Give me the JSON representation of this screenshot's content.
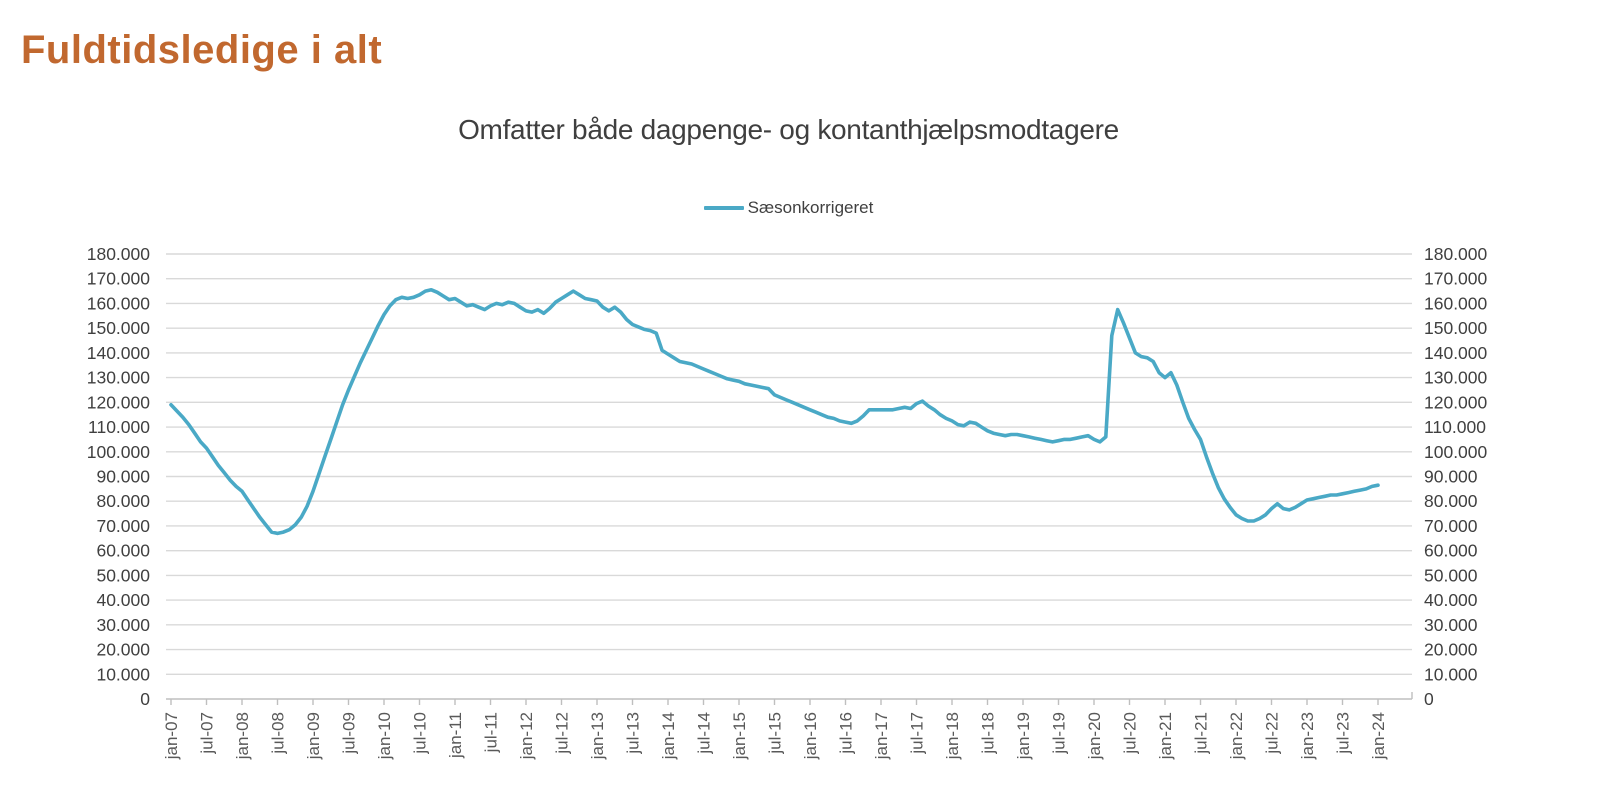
{
  "page": {
    "title": "Fuldtidsledige i alt"
  },
  "colors": {
    "title": "#C1682F",
    "series_line": "#4AA9C6",
    "grid": "#D9D9D9",
    "axis": "#BFBFBF",
    "y_tick_text": "#404040",
    "x_tick_text": "#595959"
  },
  "chart_data": {
    "type": "line",
    "title": "Omfatter både dagpenge- og kontanthjælpsmodtagere",
    "legend_position": "top-center",
    "grid": "horizontal",
    "x_start": "jan-07",
    "x_end": "jan-24",
    "x_frequency": "monthly",
    "x_tick_every_months": 6,
    "x_tick_labels": [
      "jan-07",
      "jul-07",
      "jan-08",
      "jul-08",
      "jan-09",
      "jul-09",
      "jan-10",
      "jul-10",
      "jan-11",
      "jul-11",
      "jan-12",
      "jul-12",
      "jan-13",
      "jul-13",
      "jan-14",
      "jul-14",
      "jan-15",
      "jul-15",
      "jan-16",
      "jul-16",
      "jan-17",
      "jul-17",
      "jan-18",
      "jul-18",
      "jan-19",
      "jul-19",
      "jan-20",
      "jul-20",
      "jan-21",
      "jul-21",
      "jan-22",
      "jul-22",
      "jan-23",
      "jul-23",
      "jan-24"
    ],
    "ylim": [
      0,
      180000
    ],
    "y_tick_step": 10000,
    "y_tick_labels": [
      "0",
      "10.000",
      "20.000",
      "30.000",
      "40.000",
      "50.000",
      "60.000",
      "70.000",
      "80.000",
      "90.000",
      "100.000",
      "110.000",
      "120.000",
      "130.000",
      "140.000",
      "150.000",
      "160.000",
      "170.000",
      "180.000"
    ],
    "y_axis_sides": [
      "left",
      "right"
    ],
    "series": [
      {
        "name": "Sæsonkorrigeret",
        "color": "#4AA9C6",
        "values": [
          119000,
          116500,
          114000,
          111000,
          107500,
          104000,
          101500,
          98000,
          94500,
          91500,
          88500,
          86000,
          84000,
          80500,
          77000,
          73500,
          70500,
          67500,
          67000,
          67500,
          68500,
          70500,
          73500,
          78000,
          84000,
          91000,
          98000,
          105000,
          112000,
          119000,
          125000,
          130500,
          136000,
          141000,
          146000,
          151000,
          155500,
          159000,
          161500,
          162500,
          162000,
          162500,
          163500,
          165000,
          165500,
          164500,
          163000,
          161500,
          162000,
          160500,
          159000,
          159500,
          158500,
          157500,
          159000,
          160000,
          159500,
          160500,
          160000,
          158500,
          157000,
          156500,
          157500,
          156000,
          158000,
          160500,
          162000,
          163500,
          165000,
          163500,
          162000,
          161500,
          161000,
          158500,
          157000,
          158500,
          156500,
          153500,
          151500,
          150500,
          149500,
          149000,
          148000,
          141000,
          139500,
          138000,
          136500,
          136000,
          135500,
          134500,
          133500,
          132500,
          131500,
          130500,
          129500,
          129000,
          128500,
          127500,
          127000,
          126500,
          126000,
          125500,
          123000,
          122000,
          121000,
          120000,
          119000,
          118000,
          117000,
          116000,
          115000,
          114000,
          113500,
          112500,
          112000,
          111500,
          112500,
          114500,
          117000,
          117000,
          117000,
          117000,
          117000,
          117500,
          118000,
          117500,
          119500,
          120500,
          118500,
          117000,
          115000,
          113500,
          112500,
          111000,
          110500,
          112000,
          111500,
          110000,
          108500,
          107500,
          107000,
          106500,
          107000,
          107000,
          106500,
          106000,
          105500,
          105000,
          104500,
          104000,
          104500,
          105000,
          105000,
          105500,
          106000,
          106500,
          105000,
          104000,
          106000,
          147000,
          157500,
          152000,
          146000,
          140000,
          138500,
          138000,
          136500,
          132000,
          130000,
          132000,
          127000,
          120000,
          113500,
          109000,
          105000,
          98000,
          91500,
          85500,
          81000,
          77500,
          74500,
          73000,
          72000,
          72000,
          73000,
          74500,
          77000,
          79000,
          77000,
          76500,
          77500,
          79000,
          80500,
          81000,
          81500,
          82000,
          82500,
          82500,
          83000,
          83500,
          84000,
          84500,
          85000,
          86000,
          86500
        ]
      }
    ]
  }
}
